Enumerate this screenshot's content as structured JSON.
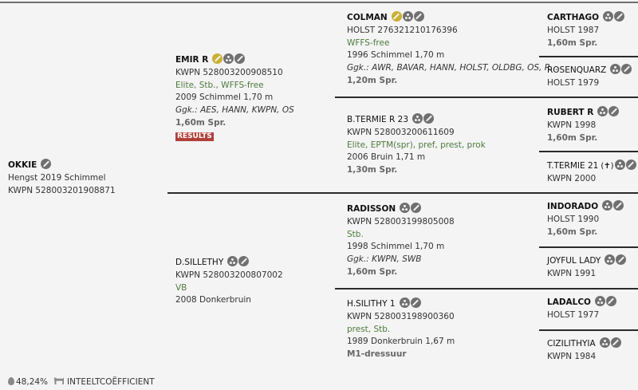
{
  "horses": [
    {
      "id": "subject",
      "name": "OKKIE",
      "bold": true,
      "icons": [
        "pencil"
      ],
      "lines": [
        {
          "text": "Hengst 2019 Schimmel"
        },
        {
          "text": "KWPN 528003201908871"
        }
      ]
    },
    {
      "id": "sire",
      "name": "EMIR R",
      "bold": true,
      "icons": [
        "pencil-gold",
        "pedigree",
        "pencil"
      ],
      "lines": [
        {
          "text": "KWPN 528003200908510"
        },
        {
          "text": "Elite, Stb., WFFS-free",
          "style": "green"
        },
        {
          "text": "2009 Schimmel 1,70 m"
        },
        {
          "text": "Ggk.: AES, HANN, KWPN, OS",
          "style": "italic"
        },
        {
          "text": "1,60m Spr.",
          "style": "bold"
        }
      ],
      "badge": "RESULTS"
    },
    {
      "id": "dam",
      "name": "D.SILLETHY",
      "bold": false,
      "icons": [
        "pedigree",
        "pencil"
      ],
      "lines": [
        {
          "text": "KWPN 528003200807002"
        },
        {
          "text": "VB",
          "style": "green"
        },
        {
          "text": "2008 Donkerbruin"
        }
      ]
    },
    {
      "id": "ss",
      "name": "COLMAN",
      "bold": true,
      "icons": [
        "pencil-gold",
        "pedigree",
        "pencil"
      ],
      "lines": [
        {
          "text": "HOLST 276321210176396"
        },
        {
          "text": "WFFS-free",
          "style": "green"
        },
        {
          "text": "1996 Schimmel 1,70 m"
        },
        {
          "text": "Ggk.: AWR, BAVAR, HANN, HOLST, OLDBG, OS, R...",
          "style": "italic"
        },
        {
          "text": "1,20m Spr.",
          "style": "bold"
        }
      ]
    },
    {
      "id": "sd",
      "name": "B.TERMIE R 23",
      "bold": false,
      "icons": [
        "pedigree",
        "pencil"
      ],
      "lines": [
        {
          "text": "KWPN 528003200611609"
        },
        {
          "text": "Elite, EPTM(spr), pref, prest, prok",
          "style": "green"
        },
        {
          "text": "2006 Bruin 1,71 m"
        },
        {
          "text": "1,30m Spr.",
          "style": "bold"
        }
      ]
    },
    {
      "id": "ds",
      "name": "RADISSON",
      "bold": true,
      "icons": [
        "pedigree",
        "pencil"
      ],
      "lines": [
        {
          "text": "KWPN 528003199805008"
        },
        {
          "text": "Stb.",
          "style": "green"
        },
        {
          "text": "1998 Schimmel 1,70 m"
        },
        {
          "text": "Ggk.: KWPN, SWB",
          "style": "italic"
        },
        {
          "text": "1,60m Spr.",
          "style": "bold"
        }
      ]
    },
    {
      "id": "dd",
      "name": "H.SILITHY 1",
      "bold": false,
      "icons": [
        "pedigree",
        "pencil"
      ],
      "lines": [
        {
          "text": "KWPN 528003198900360"
        },
        {
          "text": "prest, Stb.",
          "style": "green"
        },
        {
          "text": "1989 Donkerbruin 1,67 m"
        },
        {
          "text": "M1-dressuur",
          "style": "bold"
        }
      ]
    },
    {
      "id": "sss",
      "name": "CARTHAGO",
      "bold": true,
      "icons": [
        "pedigree",
        "pencil"
      ],
      "lines": [
        {
          "text": "HOLST 1987"
        },
        {
          "text": "1,60m Spr.",
          "style": "bold"
        }
      ]
    },
    {
      "id": "ssd",
      "name": "ROSENQUARZ",
      "bold": false,
      "icons": [
        "pedigree",
        "pencil"
      ],
      "lines": [
        {
          "text": "HOLST 1979"
        }
      ]
    },
    {
      "id": "sds",
      "name": "RUBERT R",
      "bold": true,
      "icons": [
        "pedigree",
        "pencil"
      ],
      "lines": [
        {
          "text": "KWPN 1998"
        },
        {
          "text": "1,60m Spr.",
          "style": "bold"
        }
      ]
    },
    {
      "id": "sdd",
      "name": "T.TERMIE 21",
      "bold": false,
      "deceased": "(✝)",
      "icons": [
        "pedigree",
        "pencil"
      ],
      "lines": [
        {
          "text": "KWPN 2000"
        }
      ]
    },
    {
      "id": "dss",
      "name": "INDORADO",
      "bold": true,
      "icons": [
        "pedigree",
        "pencil"
      ],
      "lines": [
        {
          "text": "HOLST 1990"
        },
        {
          "text": "1,60m Spr.",
          "style": "bold"
        }
      ]
    },
    {
      "id": "dsd",
      "name": "JOYFUL LADY",
      "bold": false,
      "icons": [
        "pedigree",
        "pencil"
      ],
      "lines": [
        {
          "text": "KWPN 1991"
        }
      ]
    },
    {
      "id": "dds",
      "name": "LADALCO",
      "bold": true,
      "icons": [
        "pedigree",
        "pencil"
      ],
      "lines": [
        {
          "text": "HOLST 1977"
        }
      ]
    },
    {
      "id": "ddd",
      "name": "CIZILITHYIA",
      "bold": false,
      "icons": [
        "pedigree",
        "pencil"
      ],
      "lines": [
        {
          "text": "KWPN 1984"
        }
      ]
    }
  ],
  "footer": {
    "percentage": "48,24%",
    "label": "INTEELTCOËFFICIENT"
  },
  "colors": {
    "green": "#4c7a3b",
    "gold": "#c8b133",
    "results": "#b0403a",
    "icon": "#707070"
  }
}
